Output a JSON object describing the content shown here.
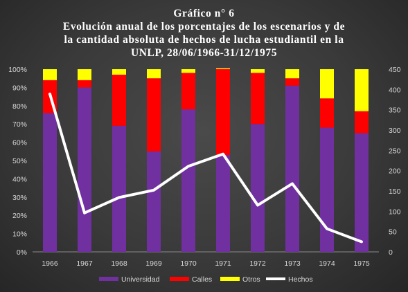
{
  "chart_data": {
    "type": "bar",
    "title_lines": [
      "Gráfico  n° 6",
      "Evolución  anual  de los porcentajes  de los escenarios  y de",
      "la cantidad  absoluta  de hechos de lucha  estudiantil  en la",
      "UNLP,  28/06/1966-31/12/1975"
    ],
    "categories": [
      "1966",
      "1967",
      "1968",
      "1969",
      "1970",
      "1971",
      "1972",
      "1973",
      "1974",
      "1975"
    ],
    "series": [
      {
        "name": "Universidad",
        "type": "stacked-bar",
        "color": "#7030a0",
        "values": [
          76,
          90,
          69,
          55,
          78,
          53,
          70,
          91,
          68,
          65
        ]
      },
      {
        "name": "Calles",
        "type": "stacked-bar",
        "color": "#ff0000",
        "values": [
          18,
          4,
          28,
          40,
          20,
          47,
          28,
          4,
          16,
          12
        ]
      },
      {
        "name": "Otros",
        "type": "stacked-bar",
        "color": "#ffff00",
        "values": [
          6,
          6,
          3,
          5,
          2,
          0.5,
          2,
          5,
          16,
          23
        ]
      },
      {
        "name": "Hechos",
        "type": "line",
        "axis": "right",
        "color": "#ffffff",
        "values": [
          389,
          96,
          134,
          152,
          211,
          241,
          115,
          168,
          57,
          25
        ]
      }
    ],
    "left_axis": {
      "ylim": [
        0,
        100
      ],
      "ticks": [
        "0%",
        "10%",
        "20%",
        "30%",
        "40%",
        "50%",
        "60%",
        "70%",
        "80%",
        "90%",
        "100%"
      ]
    },
    "right_axis": {
      "ylim": [
        0,
        450
      ],
      "ticks": [
        "0",
        "50",
        "100",
        "150",
        "200",
        "250",
        "300",
        "350",
        "400",
        "450"
      ]
    },
    "grid": false,
    "legend_position": "bottom"
  }
}
